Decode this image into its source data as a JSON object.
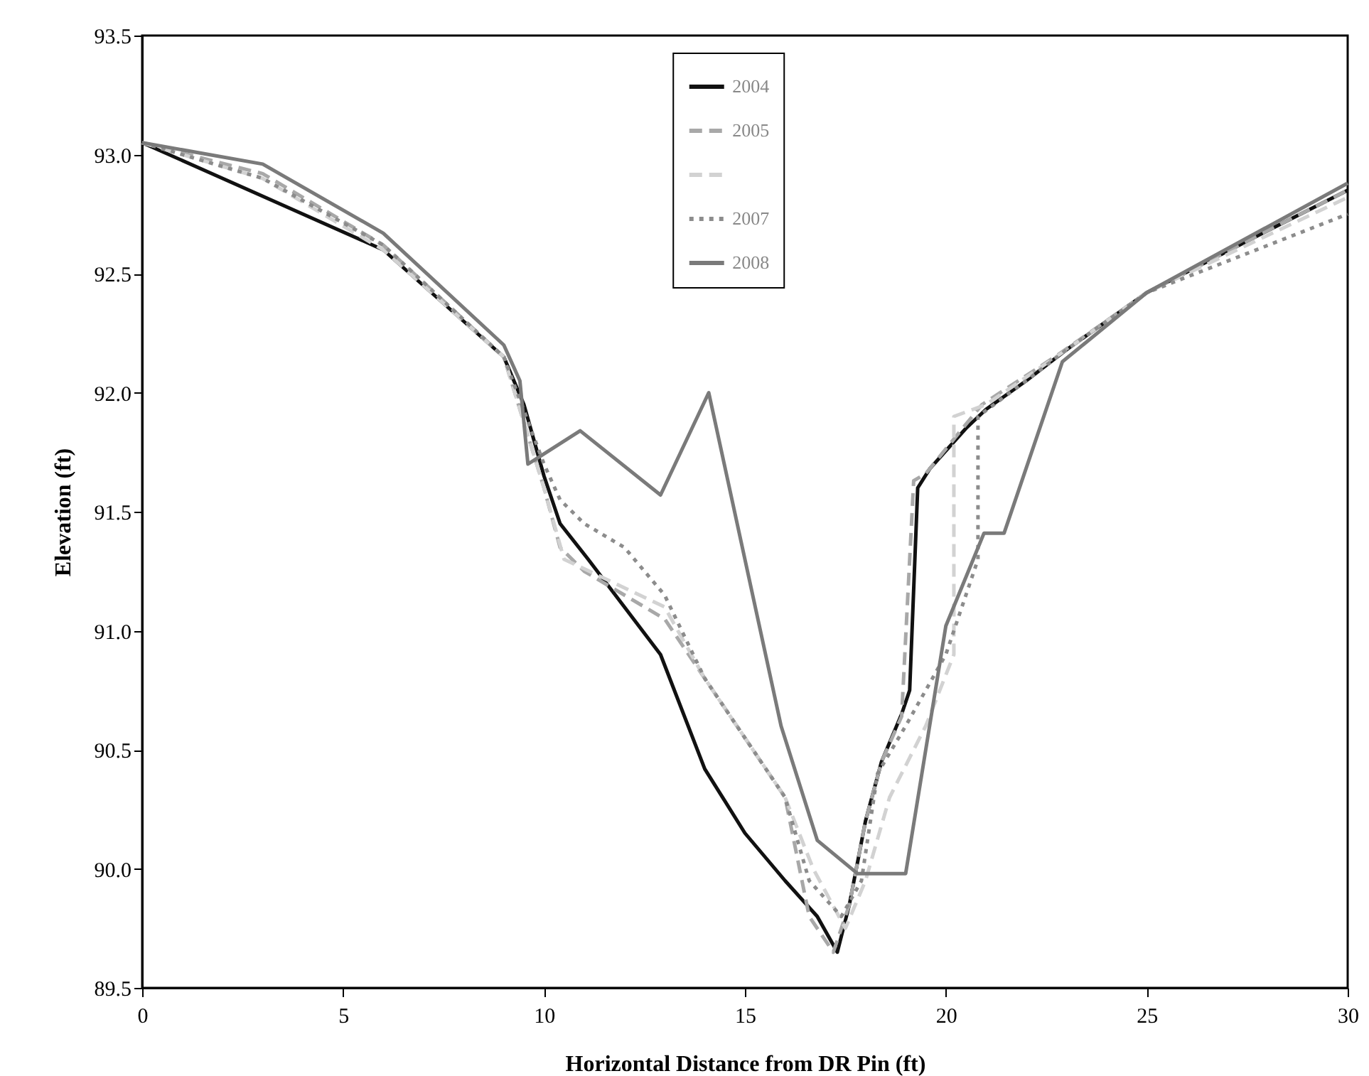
{
  "chart_data": {
    "type": "line",
    "xlabel": "Horizontal Distance from DR Pin (ft)",
    "ylabel": "Elevation (ft)",
    "xlim": [
      0,
      30
    ],
    "xticks": [
      0,
      5,
      10,
      15,
      20,
      25,
      30
    ],
    "ylim": [
      89.5,
      93.5
    ],
    "yticks": [
      89.5,
      {
        "value": 90,
        "label": "90.0"
      },
      90.5,
      {
        "value": 91,
        "label": "91.0"
      },
      91.5,
      {
        "value": 92,
        "label": "92.0"
      },
      92.5,
      {
        "value": 93,
        "label": "93.0"
      },
      93.5
    ],
    "grid": false,
    "legend": "top",
    "marker": "none",
    "series": [
      {
        "name": "2004",
        "color": "#111111",
        "line_style": "solid",
        "x": [
          0,
          2,
          4,
          6,
          8,
          9,
          9.5,
          10,
          10.4,
          11.1,
          12.9,
          14,
          15,
          16,
          16.8,
          17.3,
          17.6,
          18,
          18.4,
          18.9,
          19.1,
          19.3,
          19.6,
          20.5,
          21,
          22,
          23,
          25,
          28,
          30
        ],
        "values": [
          93.05,
          92.9,
          92.75,
          92.6,
          92.3,
          92.15,
          91.95,
          91.65,
          91.45,
          91.3,
          90.9,
          90.42,
          90.15,
          89.95,
          89.8,
          89.65,
          89.85,
          90.2,
          90.45,
          90.65,
          90.75,
          91.6,
          91.68,
          91.85,
          91.93,
          92.05,
          92.18,
          92.42,
          92.68,
          92.85
        ]
      },
      {
        "name": "2005",
        "color": "#a8a8a8",
        "line_style": "dashed",
        "x": [
          0,
          3,
          6,
          9,
          10,
          10.4,
          11,
          13,
          14,
          15,
          16,
          16.6,
          17.2,
          17.6,
          18,
          18.4,
          18.9,
          19.2,
          19.5,
          20.9,
          22.8,
          25,
          28,
          30
        ],
        "values": [
          93.05,
          92.92,
          92.62,
          92.15,
          91.6,
          91.35,
          91.25,
          91.05,
          90.8,
          90.55,
          90.3,
          89.8,
          89.65,
          89.85,
          90.2,
          90.45,
          90.64,
          91.63,
          91.66,
          91.95,
          92.16,
          92.42,
          92.68,
          92.85
        ]
      },
      {
        "name": null,
        "color": "#d2d2d2",
        "line_style": "dashed",
        "x": [
          0,
          3,
          6,
          9,
          10,
          10.5,
          13,
          14,
          15,
          16,
          16.7,
          17.5,
          18,
          18.6,
          19.5,
          20.2,
          20.2,
          21,
          23,
          25,
          30
        ],
        "values": [
          93.05,
          92.9,
          92.6,
          92.15,
          91.6,
          91.3,
          91.1,
          90.8,
          90.55,
          90.3,
          90.0,
          89.75,
          89.95,
          90.3,
          90.6,
          90.9,
          91.9,
          91.95,
          92.18,
          92.42,
          92.82
        ]
      },
      {
        "name": "2007",
        "color": "#8c8c8c",
        "line_style": "dotted",
        "x": [
          0,
          3,
          6,
          9,
          10,
          10.4,
          11,
          12,
          13,
          14,
          15,
          16,
          16.6,
          17.4,
          17.9,
          18.3,
          19,
          20,
          20.8,
          20.8,
          22,
          23,
          25,
          30
        ],
        "values": [
          93.05,
          92.9,
          92.62,
          92.15,
          91.7,
          91.55,
          91.45,
          91.35,
          91.15,
          90.8,
          90.55,
          90.3,
          89.95,
          89.8,
          89.95,
          90.4,
          90.6,
          90.9,
          91.3,
          91.9,
          92.05,
          92.18,
          92.42,
          92.75
        ]
      },
      {
        "name": "2008",
        "color": "#7a7a7a",
        "line_style": "solid",
        "x": [
          0,
          3,
          6,
          9,
          9.4,
          9.6,
          10.9,
          12.9,
          14.1,
          15.9,
          16.8,
          17.8,
          19,
          20,
          20.95,
          21.45,
          22.9,
          25,
          30
        ],
        "values": [
          93.05,
          92.96,
          92.67,
          92.2,
          92.05,
          91.7,
          91.84,
          91.57,
          92.0,
          90.6,
          90.12,
          89.98,
          89.98,
          91.02,
          91.41,
          91.41,
          92.13,
          92.42,
          92.88
        ]
      }
    ]
  }
}
